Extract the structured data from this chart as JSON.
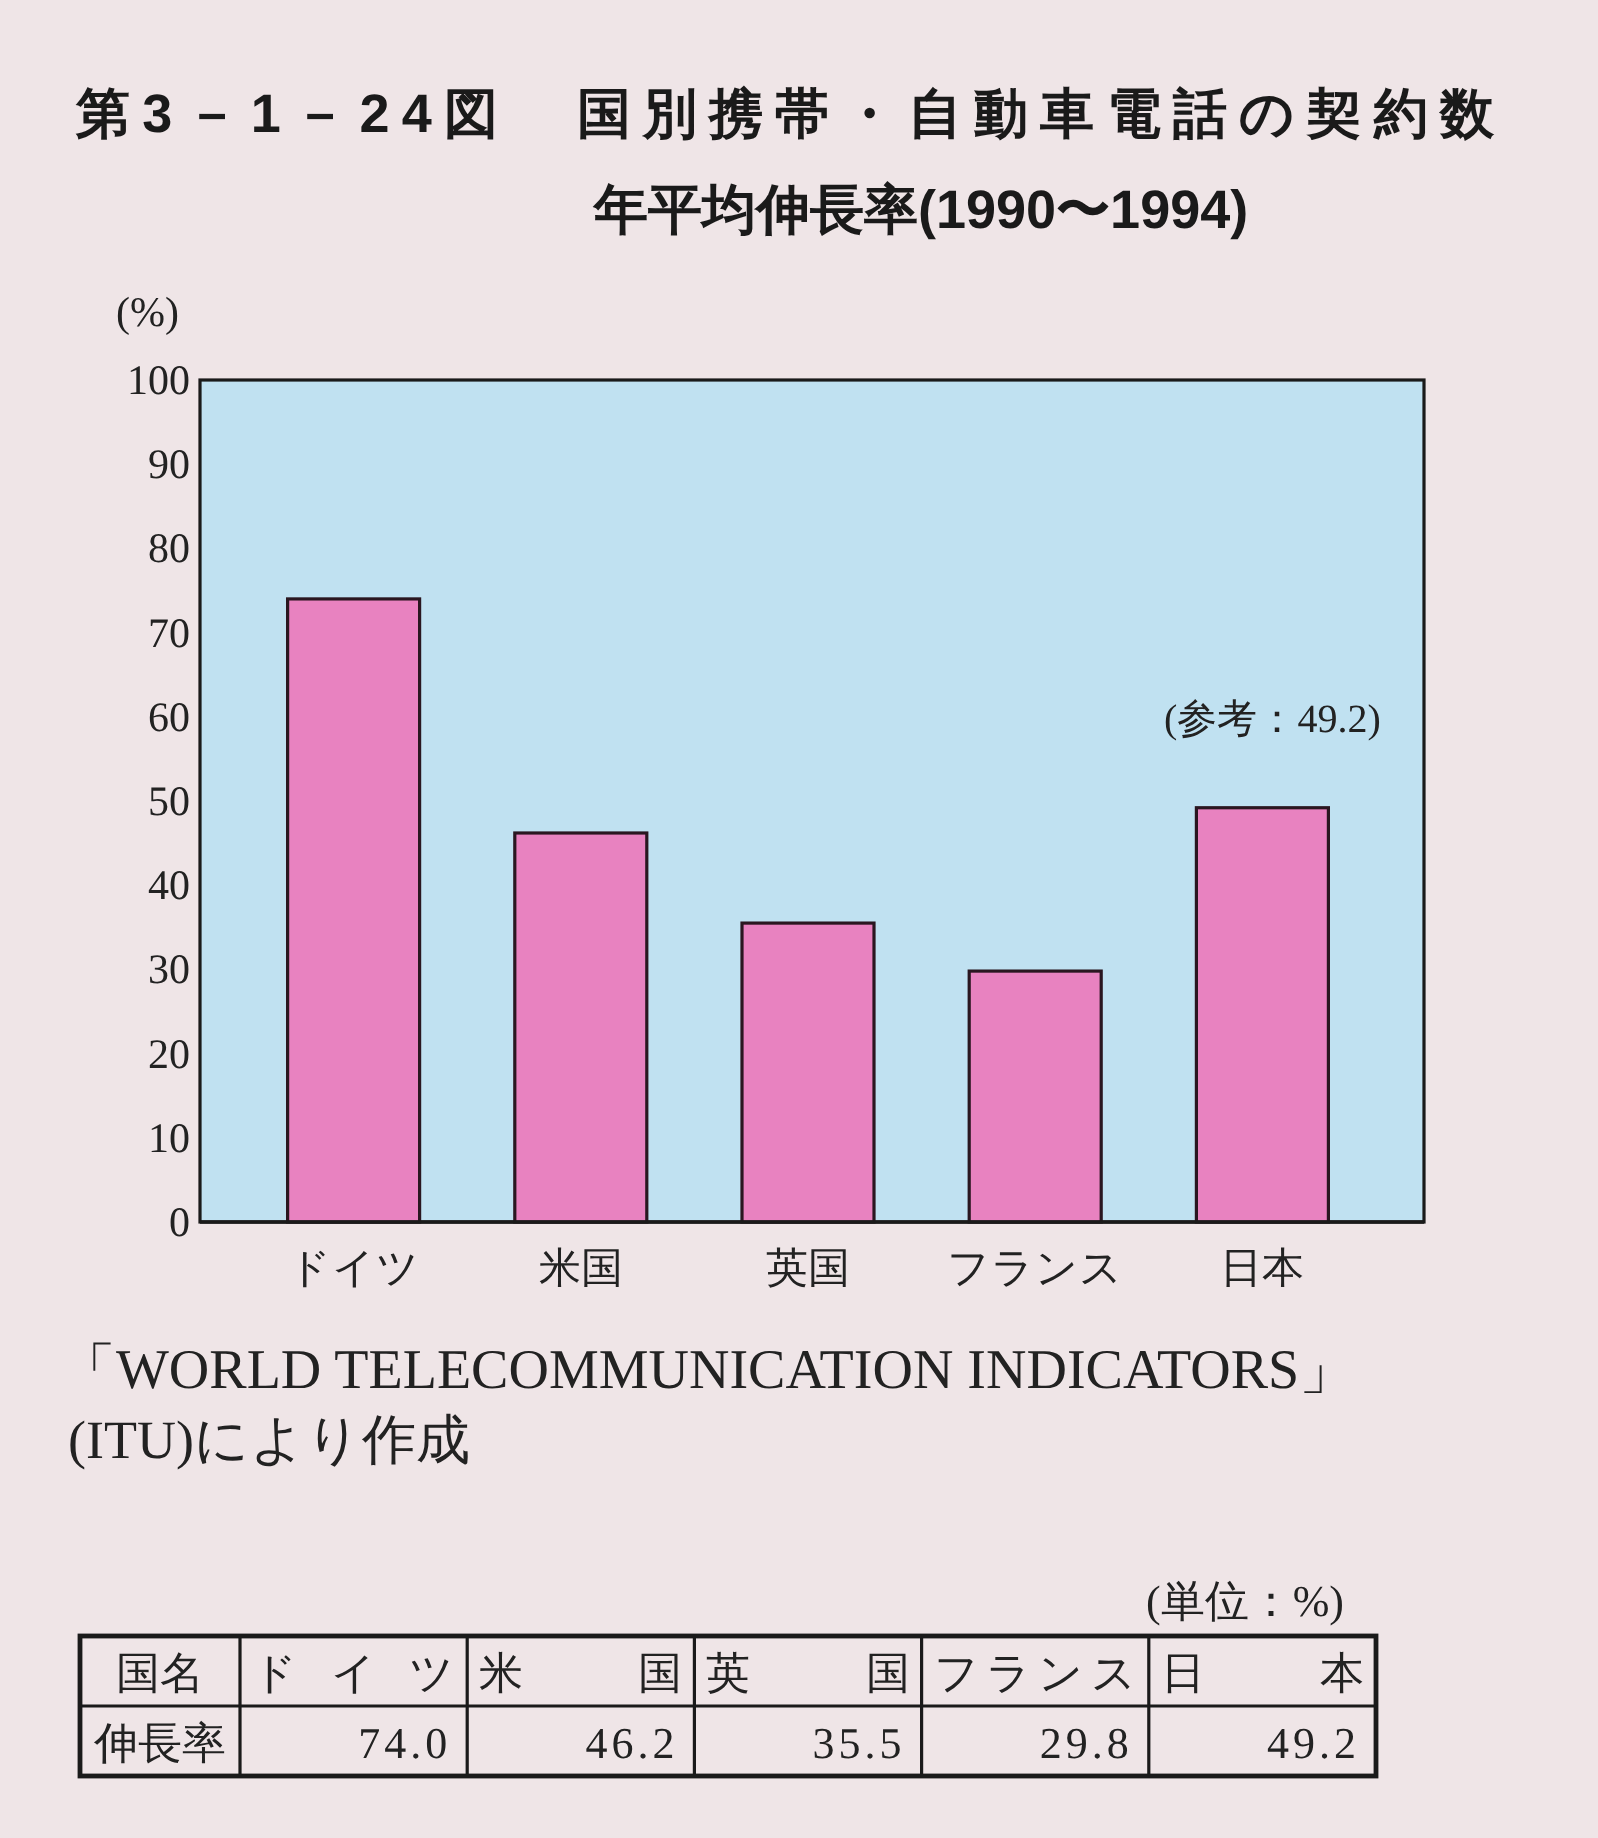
{
  "chart_data": {
    "type": "bar",
    "title": "第3－1－24図　国別携帯・自動車電話の契約数",
    "subtitle": "年平均伸長率(1990〜1994)",
    "ylabel": "(%)",
    "categories": [
      "ドイツ",
      "米国",
      "英国",
      "フランス",
      "日本"
    ],
    "values": [
      74.0,
      46.2,
      35.5,
      29.8,
      49.2
    ],
    "value_labels": [
      "74.0",
      "46.2",
      "35.5",
      "29.8",
      "49.2"
    ],
    "color": "#e882c0",
    "ylim": [
      0,
      100
    ],
    "yticks": [
      0,
      10,
      20,
      30,
      40,
      50,
      60,
      70,
      80,
      90,
      100
    ],
    "annotations": [
      {
        "text": "(参考：49.2)",
        "x": "日本",
        "y": 49.2
      },
      "「WORLD TELECOMMUNICATION INDICATORS」",
      "(ITU)により作成",
      "(単位：%)",
      "国名",
      "伸長率"
    ]
  }
}
